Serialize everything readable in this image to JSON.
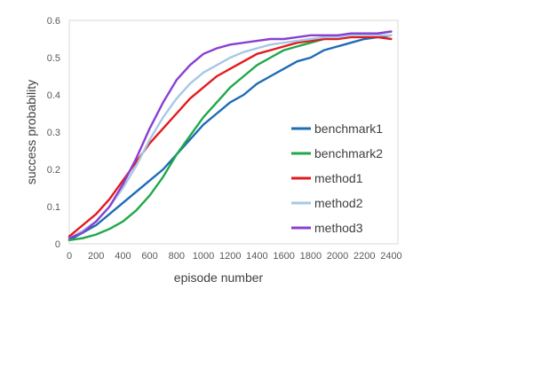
{
  "chart_data": {
    "type": "line",
    "title": "",
    "xlabel": "episode number",
    "ylabel": "success probability",
    "xlim": [
      0,
      2450
    ],
    "ylim": [
      0,
      0.6
    ],
    "xticks": [
      0,
      200,
      400,
      600,
      800,
      1000,
      1200,
      1400,
      1600,
      1800,
      2000,
      2200,
      2400
    ],
    "yticks": [
      0,
      0.1,
      0.2,
      0.3,
      0.4,
      0.5,
      0.6
    ],
    "grid": false,
    "legend_position": "right",
    "series": [
      {
        "name": "benchmark1",
        "color": "#1f6bb5",
        "x": [
          0,
          100,
          200,
          300,
          400,
          500,
          600,
          700,
          800,
          900,
          1000,
          1100,
          1200,
          1300,
          1400,
          1500,
          1600,
          1700,
          1800,
          1900,
          2000,
          2100,
          2200,
          2300,
          2400
        ],
        "y": [
          0.01,
          0.03,
          0.05,
          0.08,
          0.11,
          0.14,
          0.17,
          0.2,
          0.24,
          0.28,
          0.32,
          0.35,
          0.38,
          0.4,
          0.43,
          0.45,
          0.47,
          0.49,
          0.5,
          0.52,
          0.53,
          0.54,
          0.55,
          0.555,
          0.56
        ]
      },
      {
        "name": "benchmark2",
        "color": "#1fa84a",
        "x": [
          0,
          100,
          200,
          300,
          400,
          500,
          600,
          700,
          800,
          900,
          1000,
          1100,
          1200,
          1300,
          1400,
          1500,
          1600,
          1700,
          1800,
          1900,
          2000,
          2100,
          2200,
          2300,
          2400
        ],
        "y": [
          0.01,
          0.015,
          0.025,
          0.04,
          0.06,
          0.09,
          0.13,
          0.18,
          0.24,
          0.29,
          0.34,
          0.38,
          0.42,
          0.45,
          0.48,
          0.5,
          0.52,
          0.53,
          0.54,
          0.55,
          0.555,
          0.56,
          0.56,
          0.565,
          0.57
        ]
      },
      {
        "name": "method1",
        "color": "#e31a1c",
        "x": [
          0,
          100,
          200,
          300,
          400,
          500,
          600,
          700,
          800,
          900,
          1000,
          1100,
          1200,
          1300,
          1400,
          1500,
          1600,
          1700,
          1800,
          1900,
          2000,
          2100,
          2200,
          2300,
          2400
        ],
        "y": [
          0.02,
          0.05,
          0.08,
          0.12,
          0.17,
          0.22,
          0.27,
          0.31,
          0.35,
          0.39,
          0.42,
          0.45,
          0.47,
          0.49,
          0.51,
          0.52,
          0.53,
          0.54,
          0.545,
          0.55,
          0.55,
          0.555,
          0.555,
          0.555,
          0.55
        ]
      },
      {
        "name": "method2",
        "color": "#a6c8e6",
        "x": [
          0,
          100,
          200,
          300,
          400,
          500,
          600,
          700,
          800,
          900,
          1000,
          1100,
          1200,
          1300,
          1400,
          1500,
          1600,
          1700,
          1800,
          1900,
          2000,
          2100,
          2200,
          2300,
          2400
        ],
        "y": [
          0.015,
          0.035,
          0.06,
          0.1,
          0.15,
          0.21,
          0.28,
          0.34,
          0.39,
          0.43,
          0.46,
          0.48,
          0.5,
          0.515,
          0.525,
          0.535,
          0.54,
          0.545,
          0.55,
          0.555,
          0.555,
          0.56,
          0.56,
          0.56,
          0.56
        ]
      },
      {
        "name": "method3",
        "color": "#8a3fd1",
        "x": [
          0,
          100,
          200,
          300,
          400,
          500,
          600,
          700,
          800,
          900,
          1000,
          1100,
          1200,
          1300,
          1400,
          1500,
          1600,
          1700,
          1800,
          1900,
          2000,
          2100,
          2200,
          2300,
          2400
        ],
        "y": [
          0.015,
          0.03,
          0.06,
          0.1,
          0.16,
          0.23,
          0.31,
          0.38,
          0.44,
          0.48,
          0.51,
          0.525,
          0.535,
          0.54,
          0.545,
          0.55,
          0.55,
          0.555,
          0.56,
          0.56,
          0.56,
          0.565,
          0.565,
          0.565,
          0.57
        ]
      }
    ]
  }
}
